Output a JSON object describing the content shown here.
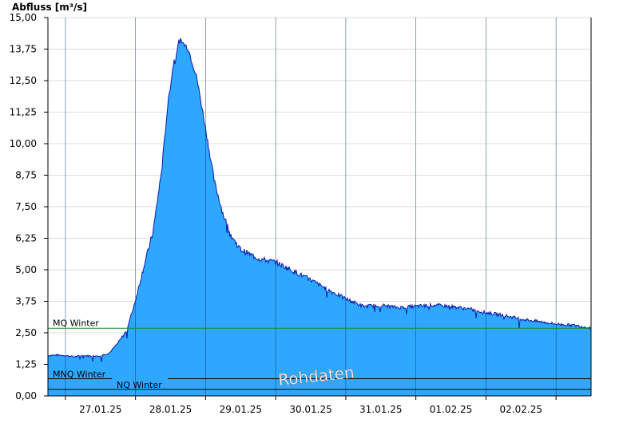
{
  "chart_data": {
    "type": "area",
    "ylabel": "Abfluss [m³/s]",
    "ylim": [
      0,
      15
    ],
    "yticks": [
      "0,00",
      "1,25",
      "2,50",
      "3,75",
      "5,00",
      "6,25",
      "7,50",
      "8,75",
      "10,00",
      "11,25",
      "12,50",
      "13,75",
      "15,00"
    ],
    "yticks_values": [
      0,
      1.25,
      2.5,
      3.75,
      5,
      6.25,
      7.5,
      8.75,
      10,
      11.25,
      12.5,
      13.75,
      15
    ],
    "xlim_days": [
      "26.01.25 18:00",
      "03.02.25 12:00"
    ],
    "xticks": [
      "27.01.25",
      "28.01.25",
      "29.01.25",
      "30.01.25",
      "31.01.25",
      "01.02.25",
      "02.02.25"
    ],
    "grid": true,
    "colors": {
      "fill": "#2ea8ff",
      "line": "#0a1aa8",
      "mq_line": "#1a8a2a",
      "ref_line": "#000000"
    },
    "series": [
      {
        "t": [
          "26.01.25 18:00",
          "26.01.25 21:00",
          "27.01.25 00:00",
          "27.01.25 03:00",
          "27.01.25 06:00",
          "27.01.25 09:00",
          "27.01.25 12:00",
          "27.01.25 15:00",
          "27.01.25 18:00",
          "27.01.25 21:00",
          "28.01.25 00:00",
          "28.01.25 03:00",
          "28.01.25 06:00",
          "28.01.25 09:00",
          "28.01.25 11:00",
          "28.01.25 13:00",
          "28.01.25 15:00",
          "28.01.25 18:00",
          "28.01.25 21:00",
          "29.01.25 00:00",
          "29.01.25 03:00",
          "29.01.25 06:00",
          "29.01.25 09:00",
          "29.01.25 12:00",
          "29.01.25 18:00",
          "30.01.25 00:00",
          "30.01.25 06:00",
          "30.01.25 12:00",
          "30.01.25 18:00",
          "31.01.25 00:00",
          "31.01.25 06:00",
          "31.01.25 12:00",
          "31.01.25 18:00",
          "01.02.25 00:00",
          "01.02.25 06:00",
          "01.02.25 12:00",
          "01.02.25 18:00",
          "02.02.25 00:00",
          "02.02.25 06:00",
          "02.02.25 12:00",
          "02.02.25 18:00",
          "03.02.25 00:00",
          "03.02.25 06:00",
          "03.02.25 12:00"
        ],
        "values": [
          1.6,
          1.62,
          1.6,
          1.55,
          1.6,
          1.58,
          1.6,
          1.7,
          2.1,
          2.6,
          3.8,
          5.2,
          6.5,
          9.0,
          11.5,
          13.2,
          14.1,
          13.8,
          12.6,
          10.6,
          8.5,
          7.2,
          6.3,
          5.8,
          5.45,
          5.3,
          4.95,
          4.6,
          4.2,
          3.85,
          3.55,
          3.6,
          3.5,
          3.55,
          3.6,
          3.55,
          3.45,
          3.3,
          3.2,
          3.05,
          2.95,
          2.85,
          2.8,
          2.7
        ]
      }
    ],
    "reference_lines": [
      {
        "name": "MQ Winter",
        "value": 2.68
      },
      {
        "name": "MNQ Winter",
        "value": 0.68
      },
      {
        "name": "NQ Winter",
        "value": 0.26
      }
    ],
    "watermark": "Rohdaten"
  }
}
